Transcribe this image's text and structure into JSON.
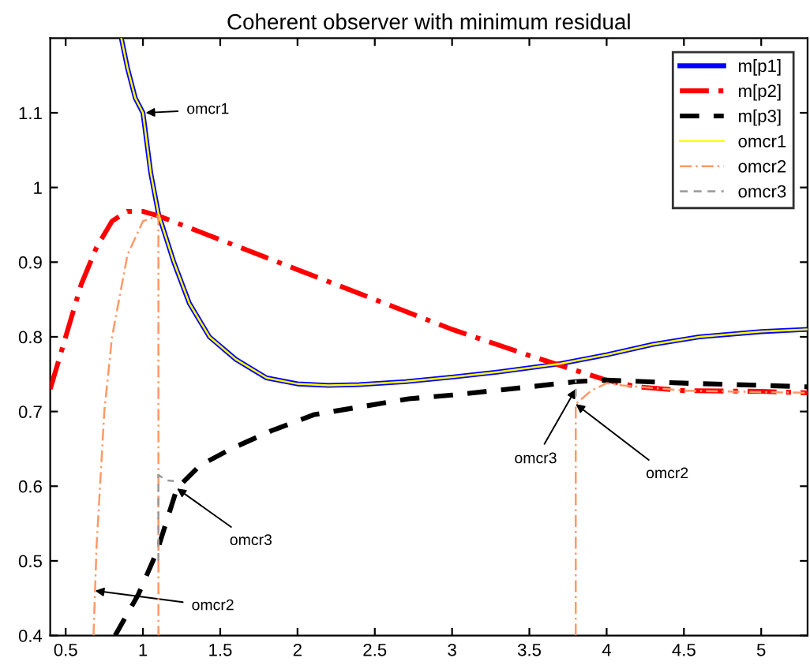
{
  "chart_data": {
    "type": "line",
    "title": "Coherent observer with minimum residual",
    "xlim": [
      0.4,
      5.3
    ],
    "ylim": [
      0.4,
      1.2
    ],
    "xticks": [
      0.5,
      1,
      1.5,
      2,
      2.5,
      3,
      3.5,
      4,
      4.5,
      5
    ],
    "yticks": [
      0.4,
      0.5,
      0.6,
      0.7,
      0.8,
      0.9,
      1,
      1.1
    ],
    "grid": false,
    "legend": "top right",
    "series": [
      {
        "name": "m[p1]",
        "color": "#0000ff",
        "line_style": "solid",
        "x": [
          0.86,
          0.9,
          0.95,
          1.0,
          1.05,
          1.1,
          1.2,
          1.3,
          1.43,
          1.6,
          1.8,
          2.0,
          2.2,
          2.4,
          2.7,
          3.0,
          3.3,
          3.7,
          4.0,
          4.3,
          4.6,
          5.0,
          5.3
        ],
        "values": [
          1.2,
          1.16,
          1.12,
          1.1,
          1.02,
          0.965,
          0.9,
          0.845,
          0.8,
          0.77,
          0.745,
          0.737,
          0.735,
          0.736,
          0.74,
          0.746,
          0.753,
          0.764,
          0.776,
          0.79,
          0.8,
          0.807,
          0.81
        ]
      },
      {
        "name": "m[p2]",
        "color": "#ff0000",
        "line_style": "dashdot",
        "x": [
          0.4,
          0.5,
          0.6,
          0.7,
          0.8,
          0.9,
          1.0,
          1.1,
          1.5,
          2.0,
          2.5,
          3.0,
          3.5,
          3.8,
          4.0,
          4.2,
          4.5,
          5.0,
          5.3
        ],
        "values": [
          0.73,
          0.8,
          0.87,
          0.92,
          0.955,
          0.968,
          0.968,
          0.962,
          0.93,
          0.89,
          0.85,
          0.81,
          0.775,
          0.755,
          0.742,
          0.733,
          0.728,
          0.727,
          0.725
        ]
      },
      {
        "name": "m[p3]",
        "color": "#000000",
        "line_style": "dashed",
        "x": [
          0.82,
          0.97,
          1.09,
          1.22,
          1.37,
          1.57,
          1.84,
          2.11,
          2.72,
          3.0,
          3.5,
          3.8,
          4.0,
          4.5,
          5.0,
          5.3
        ],
        "values": [
          0.4,
          0.455,
          0.512,
          0.597,
          0.628,
          0.65,
          0.675,
          0.696,
          0.717,
          0.722,
          0.733,
          0.74,
          0.742,
          0.738,
          0.735,
          0.733
        ]
      },
      {
        "name": "omcr1",
        "color": "#ffff00",
        "line_style": "solid",
        "x": [
          0.86,
          0.9,
          0.95,
          1.0,
          1.05,
          1.1,
          1.2,
          1.3,
          1.43,
          1.6,
          1.8,
          2.0,
          2.2,
          2.4,
          2.7,
          3.0,
          3.3,
          3.7,
          4.0,
          4.3,
          4.6,
          5.0,
          5.3
        ],
        "values": [
          1.2,
          1.16,
          1.12,
          1.1,
          1.02,
          0.965,
          0.9,
          0.845,
          0.8,
          0.77,
          0.745,
          0.737,
          0.735,
          0.736,
          0.74,
          0.746,
          0.753,
          0.764,
          0.776,
          0.79,
          0.8,
          0.807,
          0.81
        ]
      },
      {
        "name": "omcr2",
        "color": "#ff9966",
        "line_style": "dashdot",
        "x": [
          0.68,
          0.7,
          0.75,
          0.8,
          0.9,
          1.0,
          1.1,
          1.1,
          null,
          3.8,
          3.8,
          3.9,
          4.0,
          4.1,
          4.5,
          5.3
        ],
        "values": [
          0.4,
          0.52,
          0.7,
          0.8,
          0.91,
          0.955,
          0.962,
          0.4,
          null,
          0.4,
          0.71,
          0.728,
          0.738,
          0.735,
          0.728,
          0.725
        ]
      },
      {
        "name": "omcr3",
        "color": "#999999",
        "line_style": "dashed",
        "x": [
          1.1,
          1.1,
          1.15,
          1.2,
          null,
          3.8,
          3.8
        ],
        "values": [
          0.5,
          0.615,
          0.608,
          0.607,
          null,
          0.72,
          0.742
        ]
      }
    ],
    "annotations": [
      "omcr1",
      {
        "text": "omcr3",
        "x": 1.22,
        "y": 0.597
      },
      {
        "text": "omcr2",
        "x": 0.69,
        "y": 0.46
      },
      {
        "text": "omcr3",
        "x": 3.8,
        "y": 0.73
      },
      {
        "text": "omcr2",
        "x": 3.8,
        "y": 0.71
      }
    ]
  }
}
